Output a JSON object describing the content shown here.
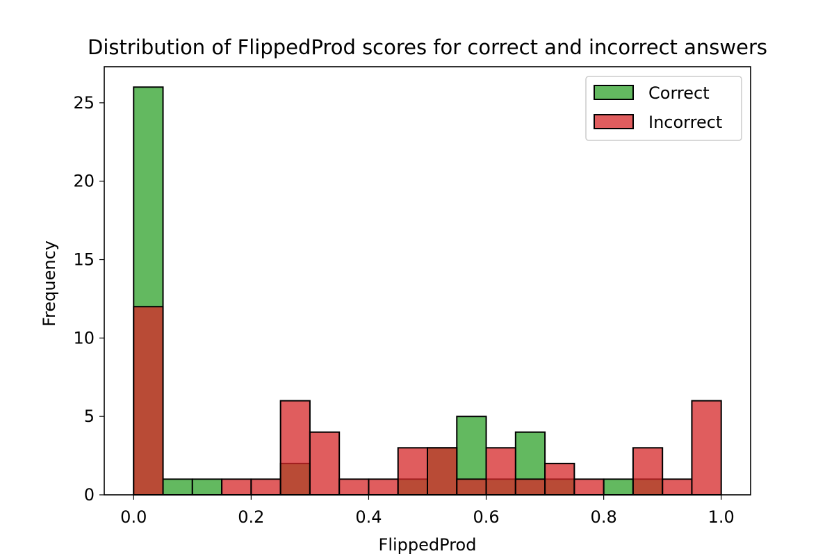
{
  "chart_data": {
    "type": "bar",
    "title": "Distribution of FlippedProd scores for correct and incorrect answers",
    "xlabel": "FlippedProd",
    "ylabel": "Frequency",
    "xlim": [
      -0.05,
      1.05
    ],
    "ylim": [
      0,
      27.3
    ],
    "xticks": [
      "0.0",
      "0.2",
      "0.4",
      "0.6",
      "0.8",
      "1.0"
    ],
    "xtick_values": [
      0.0,
      0.2,
      0.4,
      0.6,
      0.8,
      1.0
    ],
    "yticks": [
      "0",
      "5",
      "10",
      "15",
      "20",
      "25"
    ],
    "ytick_values": [
      0,
      5,
      10,
      15,
      20,
      25
    ],
    "bin_edges": [
      0.0,
      0.05,
      0.1,
      0.15,
      0.2,
      0.25,
      0.3,
      0.35,
      0.4,
      0.45,
      0.5,
      0.55,
      0.6,
      0.65,
      0.7,
      0.75,
      0.8,
      0.85,
      0.9,
      0.95,
      1.0
    ],
    "series": [
      {
        "name": "Correct",
        "color": "#4daf4a",
        "values": [
          26,
          1,
          1,
          0,
          0,
          2,
          0,
          0,
          0,
          1,
          3,
          5,
          1,
          4,
          1,
          0,
          1,
          1,
          0,
          0
        ]
      },
      {
        "name": "Incorrect",
        "color": "#d62728",
        "values": [
          12,
          0,
          0,
          1,
          1,
          6,
          4,
          1,
          1,
          3,
          3,
          1,
          3,
          1,
          2,
          1,
          0,
          3,
          1,
          6
        ]
      }
    ],
    "legend_position": "top-right",
    "grid": false
  }
}
